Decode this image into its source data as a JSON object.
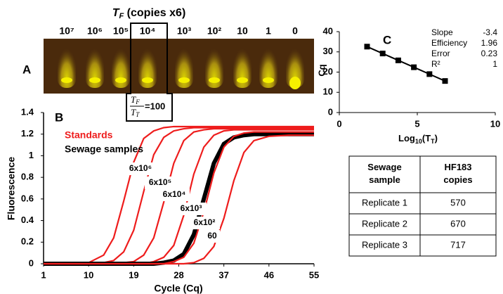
{
  "panel_labels": [
    "A",
    "B",
    "C"
  ],
  "panel_a": {
    "title_parts": [
      "T",
      "F",
      " (copies x6)"
    ],
    "tube_labels": [
      "10⁷",
      "10⁶",
      "10⁵",
      "10⁴",
      "10³",
      "10²",
      "10",
      "1",
      "0"
    ],
    "ratio": {
      "numerator": [
        "T",
        "F"
      ],
      "denominator": [
        "T",
        "T"
      ],
      "value_text": "=100"
    }
  },
  "chart_data": [
    {
      "type": "line",
      "xlabel": "Cycle (Cq)",
      "ylabel": "Fluorescence",
      "standards_label": "Standards",
      "x": [
        1,
        10,
        13,
        15,
        17,
        19,
        21,
        23,
        25,
        27,
        29,
        31,
        33,
        35,
        37,
        39,
        41,
        43,
        46,
        50,
        55
      ],
      "xlim": [
        1,
        55
      ],
      "xticks": [
        1,
        10,
        19,
        28,
        37,
        46,
        55
      ],
      "ylim": [
        0,
        1.4
      ],
      "yticks": [
        0,
        0.2,
        0.4,
        0.6,
        0.8,
        1,
        1.2,
        1.4
      ],
      "series": [
        {
          "name": "6x10⁶",
          "color": "#ee1c1c",
          "values": [
            0,
            0.01,
            0.08,
            0.24,
            0.58,
            0.94,
            1.16,
            1.23,
            1.26,
            1.27,
            1.27,
            1.27,
            1.27,
            1.27,
            1.27,
            1.27,
            1.27,
            1.27,
            1.27,
            1.27,
            1.27
          ]
        },
        {
          "name": "6x10⁵",
          "color": "#ee1c1c",
          "values": [
            0,
            0,
            0.01,
            0.03,
            0.11,
            0.31,
            0.67,
            1.01,
            1.17,
            1.23,
            1.25,
            1.26,
            1.26,
            1.26,
            1.26,
            1.26,
            1.26,
            1.26,
            1.26,
            1.26,
            1.26
          ]
        },
        {
          "name": "6x10⁴",
          "color": "#ee1c1c",
          "values": [
            0,
            0,
            0,
            0,
            0.01,
            0.02,
            0.08,
            0.24,
            0.57,
            0.93,
            1.14,
            1.22,
            1.24,
            1.25,
            1.25,
            1.25,
            1.25,
            1.25,
            1.25,
            1.25,
            1.25
          ]
        },
        {
          "name": "6x10³",
          "color": "#ee1c1c",
          "values": [
            0,
            0,
            0,
            0,
            0,
            0,
            0,
            0.02,
            0.06,
            0.17,
            0.45,
            0.83,
            1.08,
            1.19,
            1.23,
            1.24,
            1.24,
            1.24,
            1.24,
            1.24,
            1.24
          ]
        },
        {
          "name": "Sewage samples",
          "color": "#000000",
          "width": 6,
          "values": [
            0,
            0,
            0,
            0,
            0,
            0,
            0,
            0,
            0.01,
            0.03,
            0.09,
            0.27,
            0.6,
            0.93,
            1.11,
            1.17,
            1.19,
            1.2,
            1.2,
            1.2,
            1.2
          ]
        },
        {
          "name": "6x10²",
          "color": "#ee1c1c",
          "values": [
            0,
            0,
            0,
            0,
            0,
            0,
            0,
            0,
            0,
            0.02,
            0.06,
            0.19,
            0.48,
            0.84,
            1.08,
            1.18,
            1.21,
            1.22,
            1.22,
            1.22,
            1.22
          ]
        },
        {
          "name": "60",
          "color": "#ee1c1c",
          "values": [
            0,
            0,
            0,
            0,
            0,
            0,
            0,
            0,
            0,
            0,
            0,
            0.01,
            0.05,
            0.16,
            0.42,
            0.77,
            1.03,
            1.14,
            1.18,
            1.19,
            1.19
          ]
        }
      ]
    },
    {
      "type": "scatter",
      "xlabel_parts": [
        "Log",
        "10",
        "(T",
        "T",
        ")"
      ],
      "ylabel": "Cq",
      "x": [
        1.78,
        2.78,
        3.78,
        4.78,
        5.78,
        6.78
      ],
      "values": [
        32.6,
        29.2,
        25.8,
        22.4,
        19,
        15.6
      ],
      "color": "#000000",
      "xlim": [
        0,
        10
      ],
      "xticks": [
        0,
        5,
        10
      ],
      "ylim": [
        0,
        40
      ],
      "yticks": [
        0,
        10,
        20,
        30,
        40
      ],
      "stats": [
        {
          "label": "Slope",
          "value": "-3.4"
        },
        {
          "label": "Efficiency",
          "value": "1.96"
        },
        {
          "label": "Error",
          "value": "0.23"
        },
        {
          "label": "R²",
          "value": "1"
        }
      ]
    }
  ],
  "table": {
    "header": [
      "Sewage sample",
      "HF183 copies"
    ],
    "rows": [
      [
        "Replicate 1",
        "570"
      ],
      [
        "Replicate 2",
        "670"
      ],
      [
        "Replicate 3",
        "717"
      ]
    ]
  }
}
